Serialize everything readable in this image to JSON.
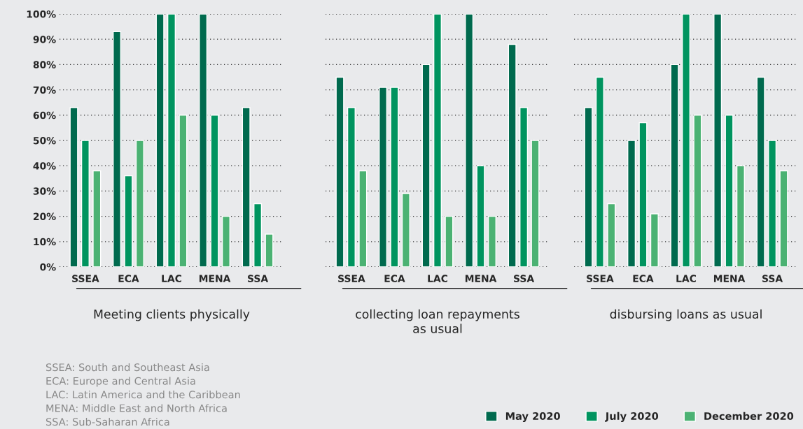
{
  "chart_data": [
    {
      "type": "bar",
      "categories": [
        "SSEA",
        "ECA",
        "LAC",
        "MENA",
        "SSA"
      ],
      "xlabel": "Meeting clients physically",
      "series": [
        {
          "name": "May 2020",
          "color": "#006a4e",
          "values": [
            63,
            93,
            100,
            100,
            63
          ]
        },
        {
          "name": "July 2020",
          "color": "#00945f",
          "values": [
            50,
            36,
            100,
            60,
            25
          ]
        },
        {
          "name": "December 2020",
          "color": "#4bb273",
          "values": [
            38,
            50,
            60,
            20,
            13
          ]
        }
      ],
      "legend": "bottom right",
      "ylim": [
        0,
        100
      ],
      "yticks": [
        {
          "value": 0,
          "label": "0%"
        },
        {
          "value": 10,
          "label": "10%"
        },
        {
          "value": 20,
          "label": "20%"
        },
        {
          "value": 30,
          "label": "30%"
        },
        {
          "value": 40,
          "label": "40%"
        },
        {
          "value": 50,
          "label": "50%"
        },
        {
          "value": 60,
          "label": "60%"
        },
        {
          "value": 70,
          "label": "70%"
        },
        {
          "value": 80,
          "label": "80%"
        },
        {
          "value": 90,
          "label": "90%"
        },
        {
          "value": 100,
          "label": "100%"
        }
      ],
      "grid": "y",
      "annotations": [
        "SSEA: South and Southeast Asia",
        "ECA: Europe and Central Asia",
        "LAC: Latin America and the Caribbean",
        "MENA: Middle East and North Africa",
        "SSA: Sub-Saharan Africa"
      ]
    },
    {
      "type": "bar",
      "categories": [
        "SSEA",
        "ECA",
        "LAC",
        "MENA",
        "SSA"
      ],
      "xlabel": "collecting loan repayments\nas usual",
      "series": [
        {
          "color": "#006a4e",
          "values": [
            75,
            71,
            80,
            100,
            88
          ]
        },
        {
          "color": "#00945f",
          "values": [
            63,
            71,
            100,
            40,
            63
          ]
        },
        {
          "color": "#4bb273",
          "values": [
            38,
            29,
            20,
            20,
            50
          ]
        }
      ],
      "ylim": [
        0,
        100
      ],
      "grid": "y",
      "tick_labels": "x"
    },
    {
      "type": "bar",
      "categories": [
        "SSEA",
        "ECA",
        "LAC",
        "MENA",
        "SSA"
      ],
      "xlabel": "disbursing loans as usual",
      "series": [
        {
          "color": "#006a4e",
          "values": [
            63,
            50,
            80,
            100,
            75
          ]
        },
        {
          "color": "#00945f",
          "values": [
            75,
            57,
            100,
            60,
            50
          ]
        },
        {
          "color": "#4bb273",
          "values": [
            25,
            21,
            60,
            40,
            38
          ]
        }
      ],
      "ylim": [
        0,
        100
      ],
      "grid": "y",
      "tick_labels": "x"
    }
  ]
}
